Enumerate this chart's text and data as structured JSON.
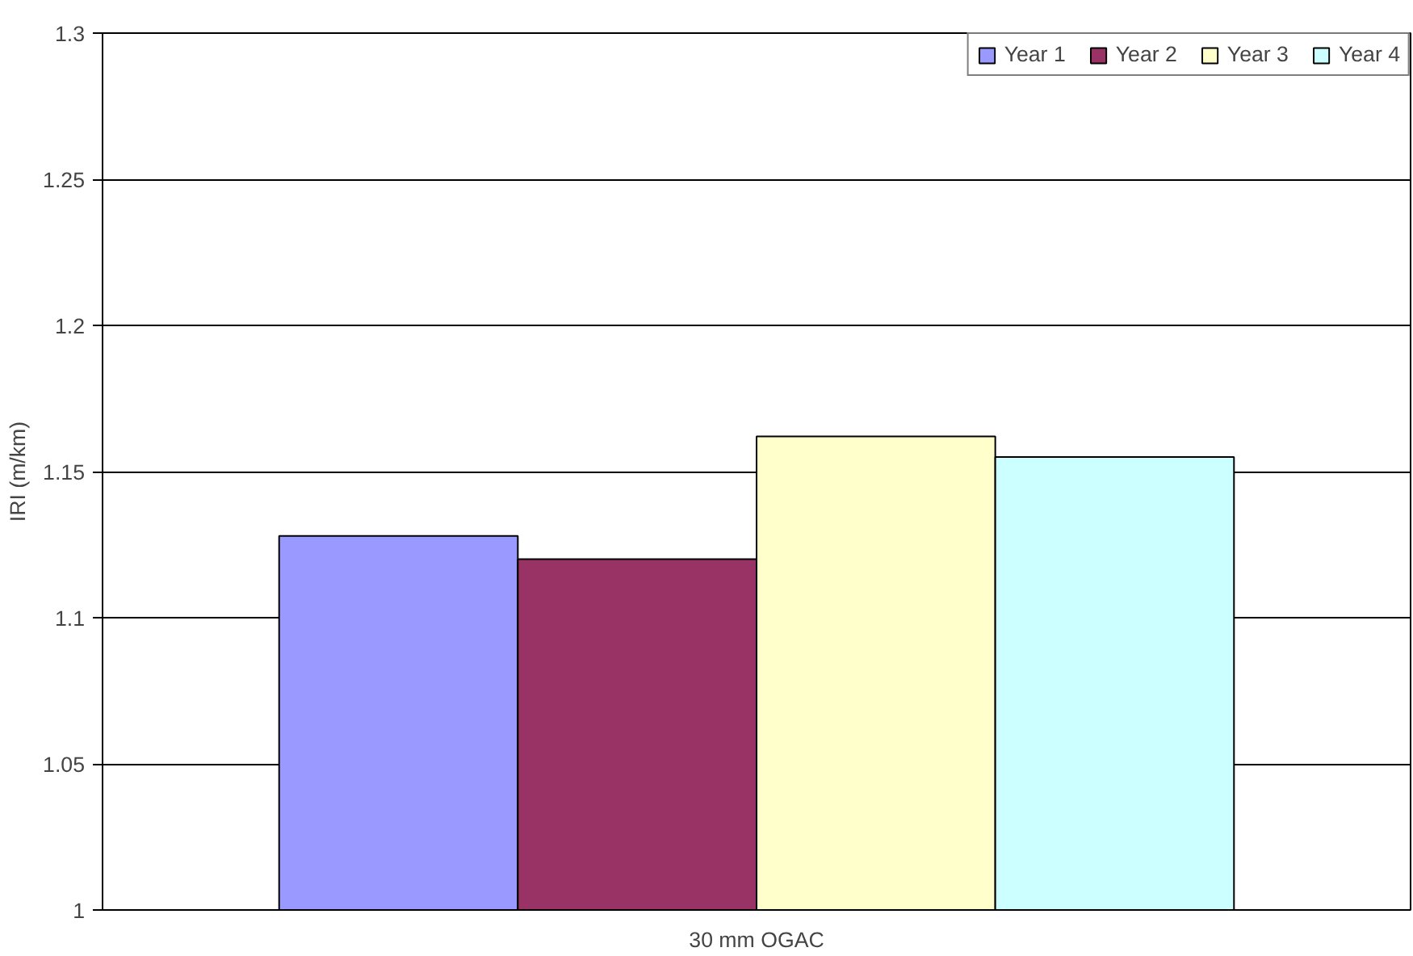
{
  "chart_data": {
    "type": "bar",
    "ylabel": "IRI (m/km)",
    "categories": [
      "30 mm OGAC"
    ],
    "series": [
      {
        "name": "Year 1",
        "color": "#9999ff",
        "values": [
          1.128
        ]
      },
      {
        "name": "Year 2",
        "color": "#993366",
        "values": [
          1.12
        ]
      },
      {
        "name": "Year 3",
        "color": "#ffffcc",
        "values": [
          1.162
        ]
      },
      {
        "name": "Year 4",
        "color": "#ccffff",
        "values": [
          1.155
        ]
      }
    ],
    "ylim": [
      1,
      1.3
    ],
    "yticks": [
      1,
      1.05,
      1.1,
      1.15,
      1.2,
      1.25,
      1.3
    ],
    "grid": "y",
    "legend": "top right"
  }
}
